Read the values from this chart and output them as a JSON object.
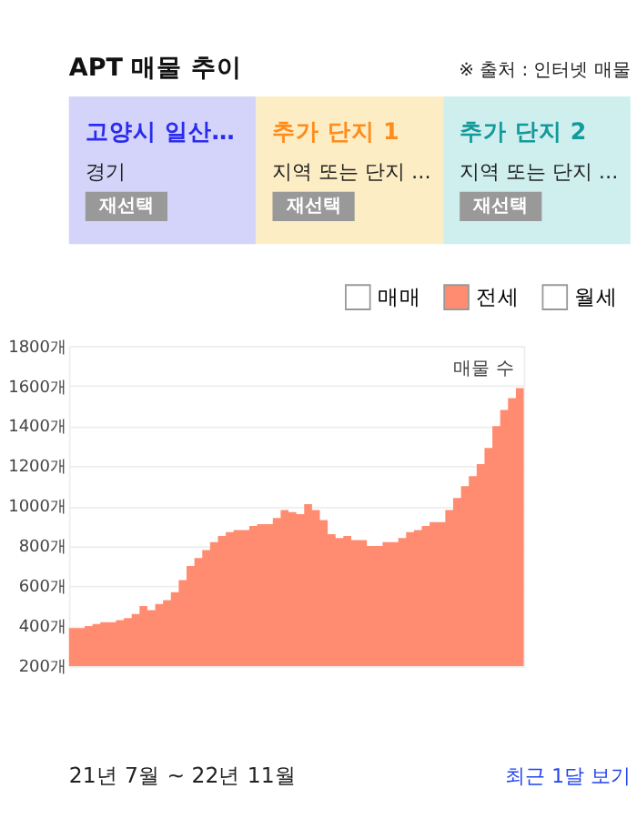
{
  "chart_data": {
    "type": "area",
    "title": "APT 매물 추이",
    "categories": [
      null,
      null,
      null,
      null,
      null,
      null,
      null,
      null,
      null,
      null,
      null,
      null,
      null,
      null,
      null,
      null,
      null,
      null,
      null,
      null,
      null,
      null,
      null,
      null,
      null,
      null,
      null,
      null,
      null,
      null,
      null,
      null,
      null,
      null,
      null,
      null,
      null,
      null,
      null,
      null,
      null,
      null,
      null,
      null,
      null,
      null,
      null,
      null,
      null,
      null,
      null,
      null,
      null,
      null,
      null,
      null,
      null,
      null,
      null
    ],
    "series": [
      {
        "name": "매매",
        "color": "#ffffff",
        "values": [
          null,
          null,
          null,
          null,
          null,
          null,
          null,
          null,
          null,
          null,
          null,
          null,
          null,
          null,
          null,
          null,
          null,
          null,
          null,
          null,
          null,
          null,
          null,
          null,
          null,
          null,
          null,
          null,
          null,
          null,
          null,
          null,
          null,
          null,
          null,
          null,
          null,
          null,
          null,
          null,
          null,
          null,
          null,
          null,
          null,
          null,
          null,
          null,
          null,
          null,
          null,
          null,
          null,
          null,
          null,
          null,
          null,
          null,
          null
        ]
      },
      {
        "name": "전세",
        "color": "#ff8c70",
        "values": [
          390,
          390,
          400,
          410,
          420,
          420,
          430,
          440,
          460,
          500,
          480,
          510,
          530,
          570,
          630,
          700,
          740,
          780,
          820,
          850,
          870,
          880,
          880,
          900,
          910,
          910,
          940,
          980,
          970,
          960,
          1010,
          980,
          930,
          860,
          840,
          850,
          830,
          830,
          800,
          800,
          820,
          820,
          840,
          870,
          880,
          900,
          920,
          920,
          980,
          1040,
          1100,
          1150,
          1210,
          1290,
          1400,
          1480,
          1540,
          1590,
          1620
        ]
      },
      {
        "name": "월세",
        "color": "#ffffff",
        "values": [
          null,
          null,
          null,
          null,
          null,
          null,
          null,
          null,
          null,
          null,
          null,
          null,
          null,
          null,
          null,
          null,
          null,
          null,
          null,
          null,
          null,
          null,
          null,
          null,
          null,
          null,
          null,
          null,
          null,
          null,
          null,
          null,
          null,
          null,
          null,
          null,
          null,
          null,
          null,
          null,
          null,
          null,
          null,
          null,
          null,
          null,
          null,
          null,
          null,
          null,
          null,
          null,
          null,
          null,
          null,
          null,
          null,
          null,
          null
        ]
      }
    ],
    "ylim": [
      200,
      1800
    ],
    "yticks": [
      {
        "value": 200,
        "label": "200개"
      },
      {
        "value": 400,
        "label": "400개"
      },
      {
        "value": 600,
        "label": "600개"
      },
      {
        "value": 800,
        "label": "800개"
      },
      {
        "value": 1000,
        "label": "1000개"
      },
      {
        "value": 1200,
        "label": "1200개"
      },
      {
        "value": 1400,
        "label": "1400개"
      },
      {
        "value": 1600,
        "label": "1600개"
      },
      {
        "value": 1800,
        "label": "1800개"
      }
    ],
    "grid": "y",
    "legend": "top right",
    "tick_labels": "y",
    "annotations": [
      "※ 출처 : 인터넷 매물",
      "고양시 일산…",
      "경기",
      "재선택",
      "추가 단지 1",
      "지역 또는 단지 …",
      "재선택",
      "추가 단지 2",
      "지역 또는 단지 …",
      "재선택",
      "매물 수",
      "21년 7월 ~ 22년 11월",
      "최근 1달 보기"
    ]
  }
}
